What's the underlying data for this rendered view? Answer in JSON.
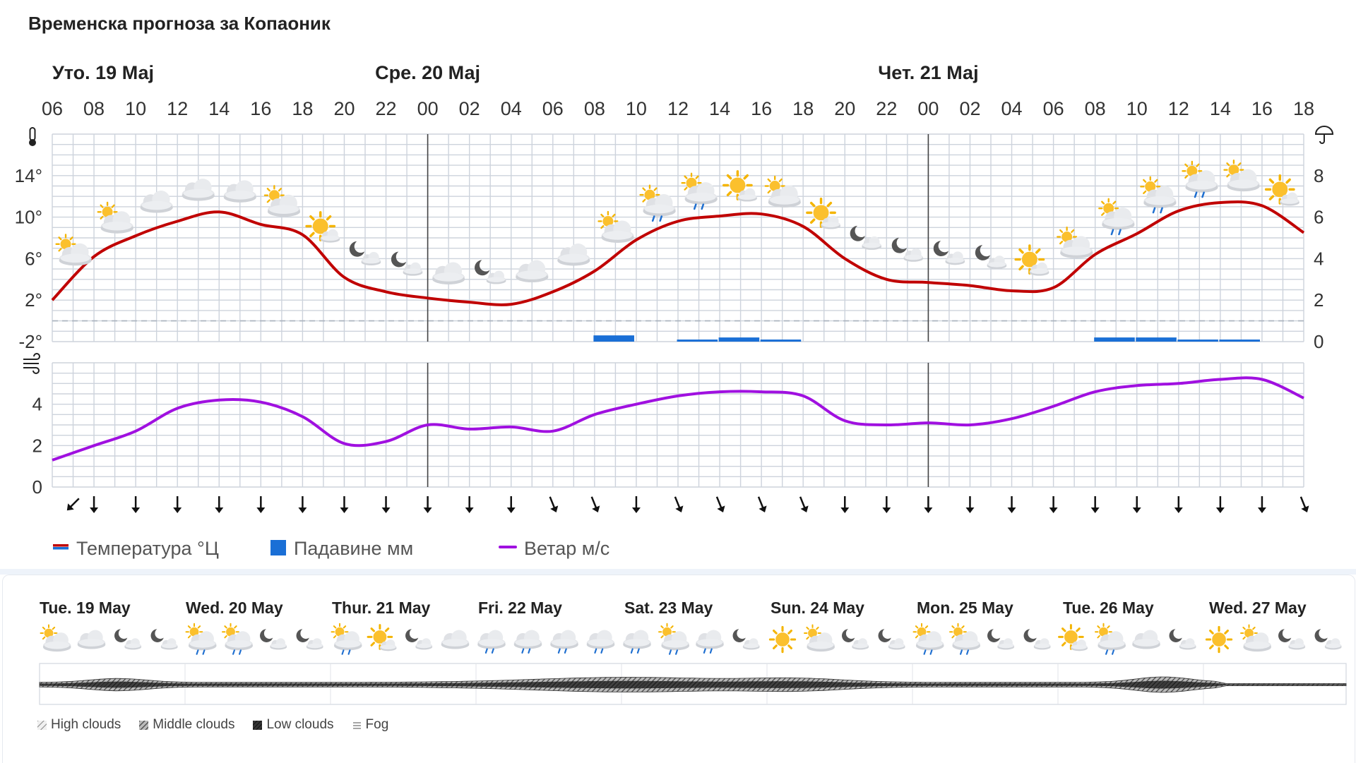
{
  "title": "Временска прогноза за Копаоник",
  "days": [
    "Уто. 19 Мај",
    "Сре. 20 Мај",
    "Чет. 21 Мај"
  ],
  "hours": [
    "06",
    "08",
    "10",
    "12",
    "14",
    "16",
    "18",
    "20",
    "22",
    "00",
    "02",
    "04",
    "06",
    "08",
    "10",
    "12",
    "14",
    "16",
    "18",
    "20",
    "22",
    "00",
    "02",
    "04",
    "06",
    "08",
    "10",
    "12",
    "14",
    "16",
    "18"
  ],
  "axes": {
    "temp_ticks": [
      "14°",
      "10°",
      "6°",
      "2°",
      "-2°"
    ],
    "precip_ticks": [
      "8",
      "6",
      "4",
      "2",
      "0"
    ],
    "wind_ticks": [
      "4",
      "2",
      "0"
    ]
  },
  "icons": {
    "thermometer": "thermometer-icon",
    "umbrella": "umbrella-icon",
    "wind": "wind-icon"
  },
  "chart_data": [
    {
      "type": "line",
      "x_unit": "hours",
      "x": [
        6,
        8,
        10,
        12,
        14,
        16,
        18,
        20,
        22,
        24,
        26,
        28,
        30,
        32,
        34,
        36,
        38,
        40,
        42,
        44,
        46,
        48,
        50,
        52,
        54,
        56,
        58,
        60,
        62,
        64,
        66
      ],
      "x_labels": [
        "06",
        "08",
        "10",
        "12",
        "14",
        "16",
        "18",
        "20",
        "22",
        "00",
        "02",
        "04",
        "06",
        "08",
        "10",
        "12",
        "14",
        "16",
        "18",
        "20",
        "22",
        "00",
        "02",
        "04",
        "06",
        "08",
        "10",
        "12",
        "14",
        "16",
        "18"
      ],
      "series": [
        {
          "name": "Температура °Ц",
          "color": "#c00000",
          "axis": "left",
          "values": [
            2,
            6.2,
            8.2,
            9.6,
            10.5,
            9.3,
            8.3,
            4.2,
            2.8,
            2.2,
            1.8,
            1.6,
            2.8,
            4.8,
            7.8,
            9.6,
            10.1,
            10.3,
            9.1,
            6.0,
            4.0,
            3.7,
            3.4,
            2.9,
            3.2,
            6.4,
            8.4,
            10.6,
            11.4,
            11.1,
            8.5
          ]
        },
        {
          "name": "Падавине мм",
          "color": "#1a6fd6",
          "axis": "right",
          "type": "bar",
          "values": [
            0,
            0,
            0,
            0,
            0,
            0,
            0,
            0,
            0,
            0,
            0,
            0,
            0,
            0.3,
            0,
            0.1,
            0.2,
            0.1,
            0,
            0,
            0,
            0,
            0,
            0,
            0,
            0.2,
            0.2,
            0.1,
            0.1,
            0,
            0
          ]
        }
      ],
      "y_left": {
        "ticks": [
          14,
          10,
          6,
          2,
          -2
        ],
        "range": [
          -2,
          18
        ]
      },
      "y_right": {
        "ticks": [
          8,
          6,
          4,
          2,
          0
        ],
        "range": [
          0,
          10
        ]
      }
    },
    {
      "type": "line",
      "x_unit": "hours",
      "x": [
        6,
        8,
        10,
        12,
        14,
        16,
        18,
        20,
        22,
        24,
        26,
        28,
        30,
        32,
        34,
        36,
        38,
        40,
        42,
        44,
        46,
        48,
        50,
        52,
        54,
        56,
        58,
        60,
        62,
        64,
        66
      ],
      "series": [
        {
          "name": "Ветар м/с",
          "color": "#a010e0",
          "values": [
            1.3,
            2.0,
            2.7,
            3.8,
            4.2,
            4.1,
            3.4,
            2.1,
            2.2,
            3.0,
            2.8,
            2.9,
            2.7,
            3.5,
            4.0,
            4.4,
            4.6,
            4.6,
            4.4,
            3.2,
            3.0,
            3.1,
            3.0,
            3.3,
            3.9,
            4.6,
            4.9,
            5.0,
            5.2,
            5.2,
            4.3
          ]
        }
      ],
      "y": {
        "ticks": [
          4,
          2,
          0
        ],
        "range": [
          0,
          6
        ]
      },
      "wind_direction_arrows": [
        "SW",
        "S",
        "S",
        "S",
        "S",
        "S",
        "S",
        "S",
        "S",
        "S",
        "S",
        "S",
        "SSE",
        "SSE",
        "S",
        "SSE",
        "SSE",
        "SSE",
        "SSE",
        "S",
        "S",
        "S",
        "S",
        "S",
        "S",
        "S",
        "S",
        "S",
        "S",
        "S",
        "SSE"
      ]
    }
  ],
  "weather_icons": [
    "partly-cloudy-day",
    "partly-cloudy-day",
    "cloudy",
    "cloudy",
    "cloudy",
    "partly-cloudy-day",
    "sunny-partly",
    "night-cloud",
    "night-cloud",
    "cloudy",
    "night-cloud",
    "cloudy",
    "cloudy",
    "partly-cloudy-day",
    "rain-partly",
    "rain-partly",
    "sunny-partly",
    "partly-cloudy-day",
    "sunny-partly",
    "night-cloud",
    "night-cloud",
    "night-cloud",
    "night-cloud",
    "sunny-partly",
    "partly-cloudy-day",
    "rain-partly",
    "rain-partly",
    "rain-partly",
    "partly-cloudy-day",
    "sunny-partly"
  ],
  "legend": [
    {
      "label": "Температура °Ц",
      "color": "#c00000",
      "swatch": "line-red-blue"
    },
    {
      "label": "Падавине мм",
      "color": "#1a6fd6",
      "swatch": "square"
    },
    {
      "label": "Ветар м/с",
      "color": "#a010e0",
      "swatch": "line"
    }
  ],
  "long_range": {
    "days": [
      "Tue. 19 May",
      "Wed. 20 May",
      "Thur. 21 May",
      "Fri. 22 May",
      "Sat. 23 May",
      "Sun. 24 May",
      "Mon. 25 May",
      "Tue. 26 May",
      "Wed. 27 May"
    ],
    "icons": [
      "partly-cloudy-day",
      "cloudy",
      "night-cloud",
      "night-cloud",
      "rain-partly",
      "rain-partly",
      "night-cloud",
      "night-cloud",
      "rain-partly",
      "sunny-partly",
      "night-cloud",
      "cloudy",
      "rain",
      "rain",
      "rain",
      "rain",
      "rain",
      "rain-partly",
      "rain",
      "night-cloud",
      "sunny",
      "partly-cloudy-day",
      "night-cloud",
      "night-cloud",
      "rain-partly",
      "rain-partly",
      "night-cloud",
      "night-cloud",
      "sunny-partly",
      "rain-partly",
      "cloudy",
      "night-cloud",
      "sunny",
      "partly-cloudy-day",
      "night-cloud",
      "night-cloud"
    ],
    "cloud_legend": [
      "High clouds",
      "Middle clouds",
      "Low clouds",
      "Fog"
    ]
  }
}
